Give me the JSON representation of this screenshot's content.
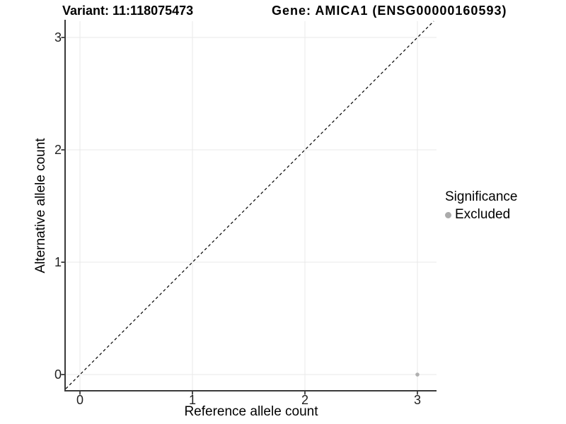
{
  "chart_data": {
    "type": "scatter",
    "title_left": "Variant: 11:118075473",
    "title_right": "Gene: AMICA1 (ENSG00000160593)",
    "xlabel": "Reference allele count",
    "ylabel": "Alternative allele count",
    "xticks": [
      0,
      1,
      2,
      3
    ],
    "yticks": [
      0,
      1,
      2,
      3
    ],
    "xlim": [
      -0.126,
      3.17
    ],
    "ylim": [
      -0.138,
      3.145
    ],
    "grid": true,
    "identity_line": {
      "style": "dashed",
      "equation": "y = x",
      "color": "#000000"
    },
    "series": [
      {
        "name": "Excluded",
        "color": "#b0b0b0",
        "points": [
          {
            "x": 3,
            "y": 0
          }
        ]
      }
    ],
    "legend": {
      "title": "Significance",
      "position": "right",
      "entries": [
        {
          "label": "Excluded",
          "color": "#ababab"
        }
      ]
    },
    "colors": {
      "grid": "#e8e8e8",
      "axis": "#3a3a3a",
      "tick_label": "#1f1f1f",
      "background": "#ffffff"
    }
  }
}
